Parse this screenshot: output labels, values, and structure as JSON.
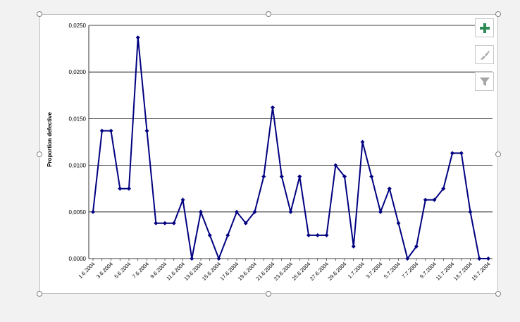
{
  "colors": {
    "series": "#000080",
    "gridline": "#000000",
    "add_icon": "#2e8b57",
    "disabled_icon": "#a6a6a6"
  },
  "side_buttons": [
    {
      "name": "chart-elements-button",
      "icon": "plus-icon"
    },
    {
      "name": "chart-styles-button",
      "icon": "brush-icon"
    },
    {
      "name": "chart-filters-button",
      "icon": "filter-icon"
    }
  ],
  "chart_data": {
    "type": "line",
    "title": "",
    "xlabel": "",
    "ylabel": "Proportion defective",
    "ylim": [
      0,
      0.025
    ],
    "grid": true,
    "legend": "none",
    "yticks": [
      "0,0000",
      "0,0050",
      "0,0100",
      "0,0150",
      "0,0200",
      "0,0250"
    ],
    "xtick_labels": [
      "1.6.2004",
      "3.6.2004",
      "5.6.2004",
      "7.6.2004",
      "9.6.2004",
      "11.6.2004",
      "13.6.2004",
      "15.6.2004",
      "17.6.2004",
      "19.6.2004",
      "21.6.2004",
      "23.6.2004",
      "25.6.2004",
      "27.6.2004",
      "29.6.2004",
      "1.7.2004",
      "3.7.2004",
      "5.7.2004",
      "7.7.2004",
      "9.7.2004",
      "11.7.2004",
      "13.7.2004",
      "15.7.2004"
    ],
    "values": [
      0.005,
      0.0137,
      0.0137,
      0.0075,
      0.0075,
      0.0237,
      0.0137,
      0.0038,
      0.0038,
      0.0038,
      0.0063,
      0.0,
      0.005,
      0.0025,
      0.0,
      0.0025,
      0.005,
      0.0038,
      0.005,
      0.0088,
      0.0162,
      0.0088,
      0.005,
      0.0088,
      0.0025,
      0.0025,
      0.0025,
      0.01,
      0.0088,
      0.0013,
      0.0125,
      0.0088,
      0.005,
      0.0075,
      0.0038,
      0.0,
      0.0013,
      0.0063,
      0.0063,
      0.0075,
      0.0113,
      0.0113,
      0.005,
      0.0,
      0.0
    ]
  }
}
